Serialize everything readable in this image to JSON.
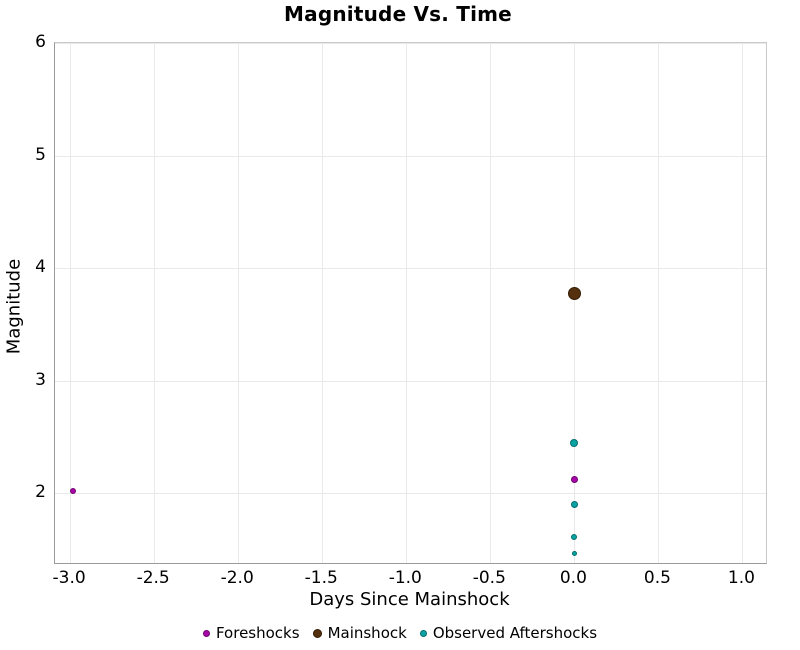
{
  "chart_data": {
    "type": "scatter",
    "title": "Magnitude Vs. Time",
    "xlabel": "Days Since Mainshock",
    "ylabel": "Magnitude",
    "xlim": [
      -3.09,
      1.14
    ],
    "ylim": [
      1.38,
      6.0
    ],
    "grid": true,
    "legend_position": "bottom",
    "xticks": [
      {
        "v": -3.0,
        "label": "-3.0"
      },
      {
        "v": -2.5,
        "label": "-2.5"
      },
      {
        "v": -2.0,
        "label": "-2.0"
      },
      {
        "v": -1.5,
        "label": "-1.5"
      },
      {
        "v": -1.0,
        "label": "-1.0"
      },
      {
        "v": -0.5,
        "label": "-0.5"
      },
      {
        "v": 0.0,
        "label": "0.0"
      },
      {
        "v": 0.5,
        "label": "0.5"
      },
      {
        "v": 1.0,
        "label": "1.0"
      }
    ],
    "yticks": [
      {
        "v": 2,
        "label": "2"
      },
      {
        "v": 3,
        "label": "3"
      },
      {
        "v": 4,
        "label": "4"
      },
      {
        "v": 5,
        "label": "5"
      },
      {
        "v": 6,
        "label": "6"
      }
    ],
    "series": [
      {
        "name": "Foreshocks",
        "color": "#a906a9",
        "edge_color": "#6f046f",
        "legend_marker_px": 7,
        "points": [
          {
            "x": -2.98,
            "y": 2.02,
            "d": 6
          },
          {
            "x": 0.0,
            "y": 2.12,
            "d": 7
          }
        ]
      },
      {
        "name": "Mainshock",
        "color": "#54300e",
        "edge_color": "#331c06",
        "legend_marker_px": 9,
        "points": [
          {
            "x": 0.0,
            "y": 3.77,
            "d": 13
          }
        ]
      },
      {
        "name": "Observed Aftershocks",
        "color": "#0aa3a3",
        "edge_color": "#056c6c",
        "legend_marker_px": 7,
        "points": [
          {
            "x": 0.0,
            "y": 2.45,
            "d": 8
          },
          {
            "x": 0.0,
            "y": 1.9,
            "d": 7
          },
          {
            "x": 0.0,
            "y": 1.61,
            "d": 6
          },
          {
            "x": 0.0,
            "y": 1.46,
            "d": 5
          }
        ]
      }
    ]
  }
}
